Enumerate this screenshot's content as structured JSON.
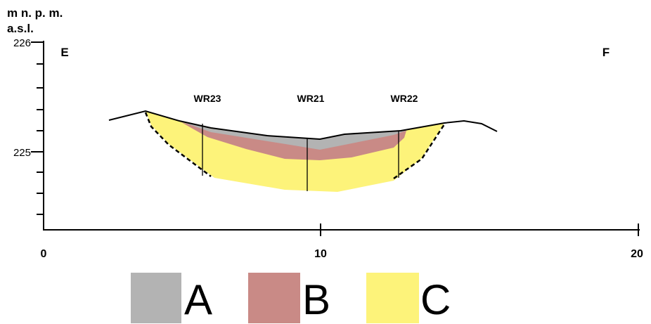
{
  "axes": {
    "y_title_line1": "m n. p. m.",
    "y_title_line2": "a.s.l.",
    "y_labels": [
      "226",
      "225"
    ],
    "x_labels": [
      "0",
      "10",
      "20"
    ]
  },
  "section": {
    "start": "E",
    "end": "F",
    "boreholes": [
      "WR23",
      "WR21",
      "WR22"
    ]
  },
  "legend": [
    "A",
    "B",
    "C"
  ]
}
